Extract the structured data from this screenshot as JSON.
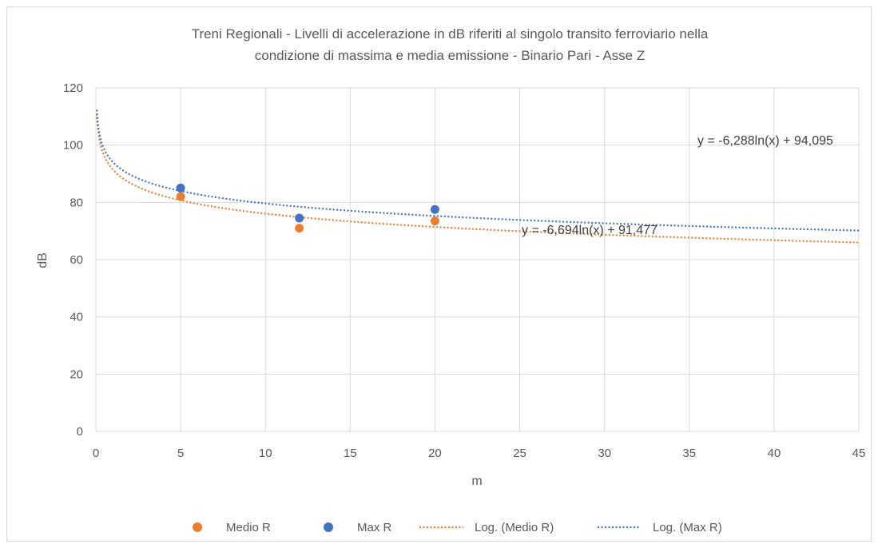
{
  "chart_data": {
    "type": "scatter",
    "title_lines": [
      "Treni Regionali - Livelli di accelerazione in dB riferiti al singolo transito ferroviario nella",
      "condizione di massima e media emissione - Binario Pari - Asse Z"
    ],
    "xlabel": "m",
    "ylabel": "dB",
    "xlim": [
      0,
      45
    ],
    "ylim": [
      0,
      120
    ],
    "x_ticks": [
      "0",
      "5",
      "10",
      "15",
      "20",
      "25",
      "30",
      "35",
      "40",
      "45"
    ],
    "y_ticks": [
      "0",
      "20",
      "40",
      "60",
      "80",
      "100",
      "120"
    ],
    "grid": "vertical and horizontal",
    "series": [
      {
        "name": "Medio R",
        "color": "#ed7d31",
        "points": [
          {
            "x": 5,
            "y": 82
          },
          {
            "x": 12,
            "y": 71
          },
          {
            "x": 20,
            "y": 73.5
          }
        ]
      },
      {
        "name": "Max R",
        "color": "#4472c4",
        "points": [
          {
            "x": 5,
            "y": 85
          },
          {
            "x": 12,
            "y": 74.5
          },
          {
            "x": 20,
            "y": 77.5
          }
        ]
      }
    ],
    "trendlines": [
      {
        "name": "Log. (Medio R)",
        "color": "#ed7d31",
        "a": -6.694,
        "b": 91.477,
        "equation": "y = -6,694ln(x) + 91,477"
      },
      {
        "name": "Log. (Max R)",
        "color": "#4472c4",
        "a": -6.288,
        "b": 94.095,
        "equation": "y = -6,288ln(x) + 94,095"
      }
    ],
    "legend_position": "bottom"
  }
}
